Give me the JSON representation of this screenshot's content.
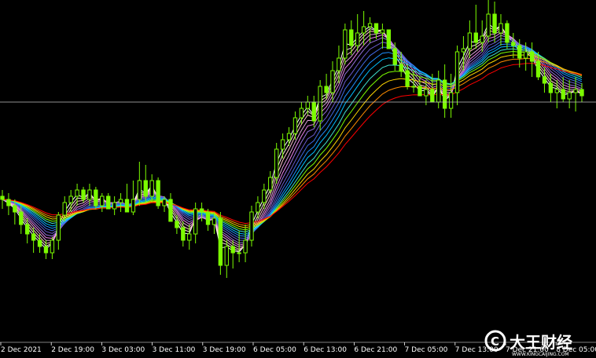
{
  "chart_data": {
    "type": "candlestick",
    "title": "",
    "xlabel": "",
    "ylabel": "",
    "grid": false,
    "background": "#000000",
    "colors": {
      "candle_up": "#7CFC00",
      "candle_down": "#7CFC00",
      "wick": "#7CFC00",
      "price_line": "#c0c0c0",
      "axis_text": "#ffffff"
    },
    "ylim": [
      0,
      100
    ],
    "x_ticks": [
      "2 Dec 2021",
      "2 Dec 19:00",
      "3 Dec 03:00",
      "3 Dec 11:00",
      "3 Dec 19:00",
      "6 Dec 05:00",
      "6 Dec 13:00",
      "6 Dec 21:00",
      "7 Dec 05:00",
      "7 Dec 13:00",
      "7 Dec 21:00",
      "8 Dec 05:00"
    ],
    "current_price_level": 72,
    "ribbon": {
      "lines": 15,
      "colors": [
        "#ffffff",
        "#ffe4e1",
        "#ffc0cb",
        "#dda0dd",
        "#ee82ee",
        "#9370db",
        "#6a5acd",
        "#4169e1",
        "#1e90ff",
        "#00bfff",
        "#40e0d0",
        "#7cfc00",
        "#ffd700",
        "#ff8c00",
        "#ff0000"
      ],
      "smoothing_spread": [
        0.62,
        0.5,
        0.42,
        0.35,
        0.3,
        0.26,
        0.22,
        0.19,
        0.165,
        0.145,
        0.125,
        0.11,
        0.095,
        0.082,
        0.07
      ]
    },
    "candles": {
      "open": [
        42,
        41,
        39,
        37,
        33,
        30,
        28,
        26,
        24,
        28,
        36,
        40,
        42,
        44,
        41,
        44,
        39,
        42,
        38,
        40,
        41,
        37,
        41,
        47,
        42,
        47,
        39,
        41,
        34,
        32,
        28,
        30,
        38,
        37,
        33,
        35,
        20,
        26,
        24,
        24,
        28,
        37,
        40,
        44,
        48,
        57,
        60,
        62,
        67,
        70,
        72,
        66,
        77,
        75,
        82,
        86,
        95,
        90,
        94,
        96,
        97,
        94,
        95,
        89,
        84,
        82,
        77,
        77,
        74,
        76,
        72,
        79,
        70,
        75,
        88,
        89,
        94,
        91,
        93,
        100,
        94,
        97,
        91,
        90,
        86,
        88,
        85,
        80,
        78,
        75,
        76,
        73,
        75,
        76
      ],
      "high": [
        44,
        43,
        41,
        39,
        35,
        32,
        30,
        28,
        29,
        37,
        42,
        44,
        46,
        45,
        46,
        45,
        43,
        43,
        42,
        43,
        46,
        47,
        53,
        52,
        49,
        48,
        42,
        43,
        36,
        34,
        33,
        40,
        40,
        38,
        37,
        37,
        28,
        28,
        31,
        33,
        39,
        42,
        46,
        50,
        59,
        62,
        64,
        69,
        72,
        74,
        74,
        79,
        81,
        85,
        90,
        97,
        98,
        100,
        101,
        99,
        97,
        97,
        95,
        91,
        88,
        84,
        82,
        80,
        79,
        81,
        82,
        84,
        81,
        90,
        93,
        98,
        103,
        98,
        106,
        104,
        100,
        98,
        94,
        92,
        91,
        91,
        88,
        83,
        81,
        79,
        80,
        79,
        80,
        78
      ],
      "low": [
        38,
        36,
        33,
        30,
        27,
        24,
        24,
        22,
        22,
        25,
        34,
        37,
        39,
        40,
        39,
        38,
        37,
        38,
        36,
        37,
        38,
        36,
        39,
        40,
        40,
        38,
        37,
        34,
        30,
        26,
        25,
        27,
        34,
        31,
        30,
        17,
        16,
        19,
        21,
        21,
        26,
        35,
        38,
        43,
        46,
        54,
        58,
        60,
        65,
        68,
        64,
        63,
        73,
        72,
        78,
        84,
        87,
        88,
        90,
        91,
        92,
        89,
        89,
        82,
        80,
        76,
        75,
        74,
        71,
        72,
        70,
        67,
        67,
        71,
        82,
        86,
        89,
        88,
        91,
        91,
        90,
        89,
        86,
        83,
        82,
        80,
        79,
        75,
        72,
        70,
        72,
        70,
        69,
        72
      ],
      "close": [
        41,
        39,
        37,
        33,
        30,
        28,
        26,
        24,
        28,
        36,
        40,
        42,
        44,
        41,
        44,
        39,
        42,
        38,
        40,
        41,
        37,
        41,
        47,
        42,
        47,
        39,
        41,
        34,
        32,
        28,
        30,
        38,
        37,
        33,
        35,
        20,
        26,
        24,
        24,
        28,
        37,
        40,
        44,
        48,
        57,
        60,
        62,
        67,
        70,
        72,
        66,
        77,
        75,
        82,
        86,
        95,
        90,
        94,
        96,
        97,
        94,
        95,
        89,
        84,
        82,
        77,
        77,
        74,
        76,
        72,
        79,
        70,
        75,
        88,
        89,
        94,
        91,
        93,
        100,
        94,
        97,
        91,
        90,
        86,
        88,
        85,
        80,
        78,
        75,
        76,
        73,
        75,
        76,
        74
      ]
    }
  },
  "watermark": {
    "logo_glyph": "C",
    "brand_cn": "大王财经",
    "site": "WWW.KINGCAIJING.COM"
  }
}
